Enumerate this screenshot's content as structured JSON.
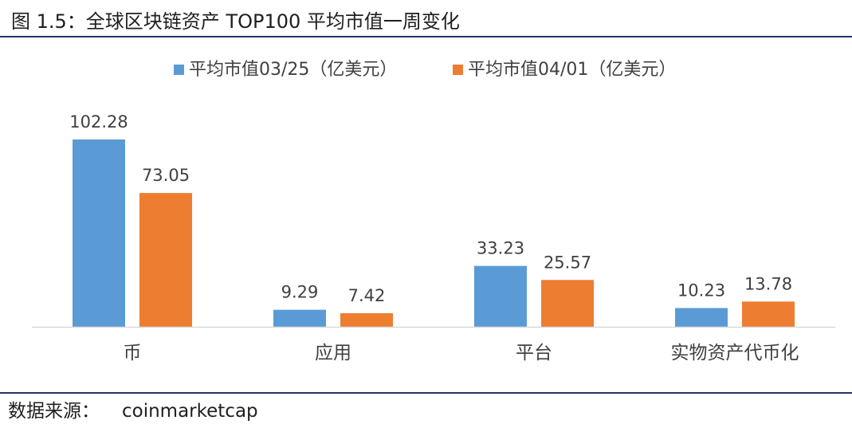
{
  "figure": {
    "title": "图 1.5：全球区块链资产 TOP100 平均市值一周变化",
    "source_label": "数据来源：",
    "source_value": "coinmarketcap"
  },
  "colors": {
    "rule": "#1f3864",
    "series_1": "#5b9bd5",
    "series_2": "#ed7d31",
    "axis": "#d9d9d9",
    "text": "#404040"
  },
  "chart_data": {
    "type": "bar",
    "categories": [
      "币",
      "应用",
      "平台",
      "实物资产代币化"
    ],
    "series": [
      {
        "name": "平均市值03/25（亿美元）",
        "values": [
          102.28,
          9.29,
          33.23,
          10.23
        ],
        "labels": [
          "102.28",
          "9.29",
          "33.23",
          "10.23"
        ]
      },
      {
        "name": "平均市值04/01（亿美元）",
        "values": [
          73.05,
          7.42,
          25.57,
          13.78
        ],
        "labels": [
          "73.05",
          "7.42",
          "25.57",
          "13.78"
        ]
      }
    ],
    "title": "",
    "xlabel": "",
    "ylabel": "",
    "ylim": [
      0,
      102.28
    ],
    "grid": false,
    "legend": "top-center",
    "data_labels": true
  }
}
